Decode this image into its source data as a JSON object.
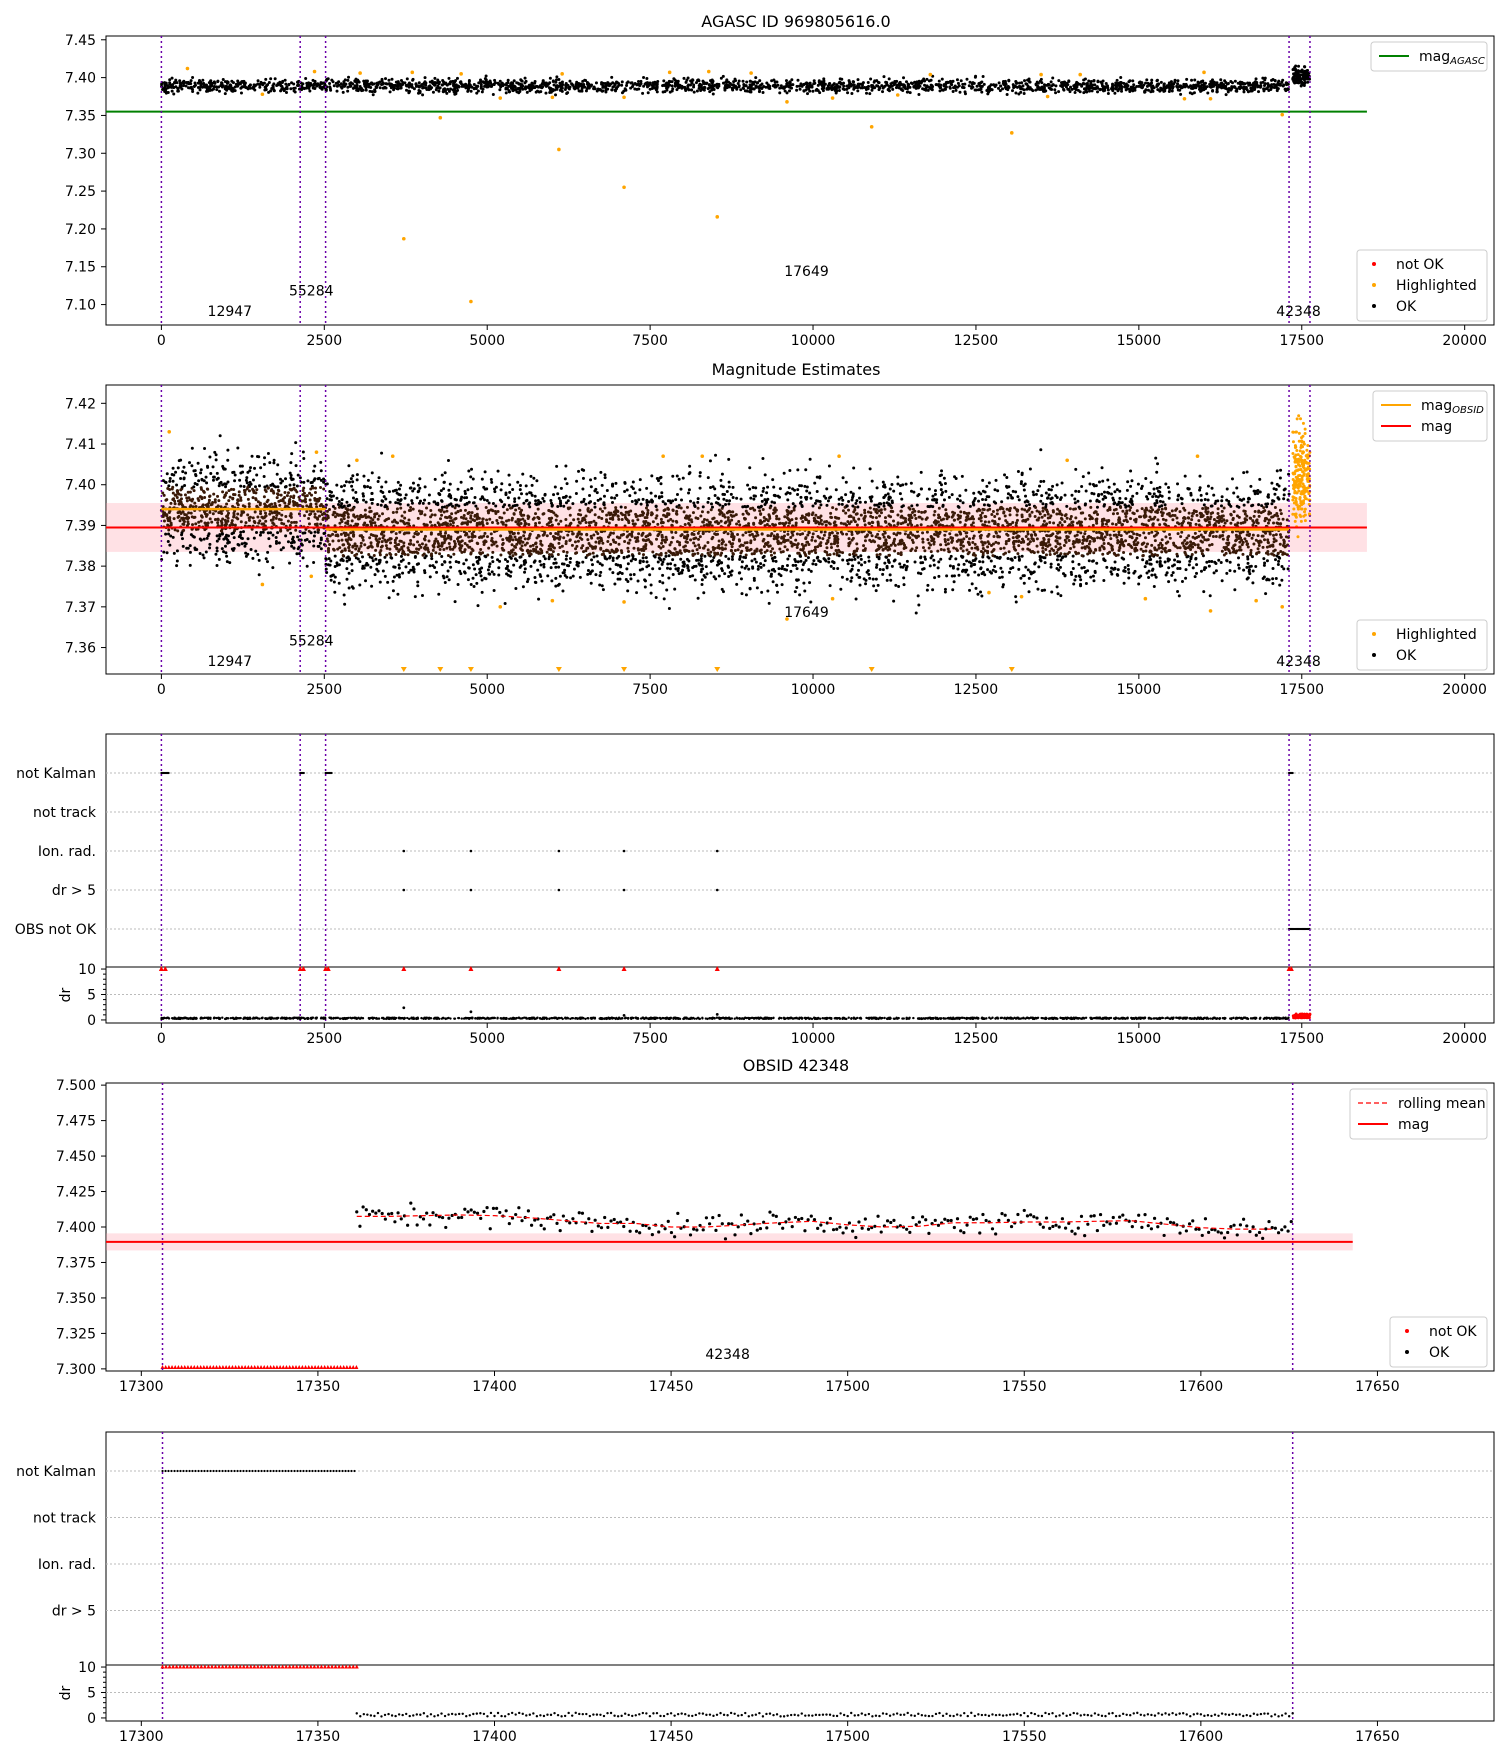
{
  "figure": {
    "titles": {
      "p1": "AGASC ID 969805616.0",
      "p2": "Magnitude Estimates",
      "p4": "OBSID 42348"
    }
  },
  "chart_data": [
    {
      "id": "p1",
      "type": "scatter",
      "title": "AGASC ID 969805616.0",
      "xlim": [
        -850,
        20450
      ],
      "ylim": [
        7.073,
        7.455
      ],
      "xticks": [
        0,
        2500,
        5000,
        7500,
        10000,
        12500,
        15000,
        17500,
        20000
      ],
      "yticks": [
        7.1,
        7.15,
        7.2,
        7.25,
        7.3,
        7.35,
        7.4,
        7.45
      ],
      "ytick_labels": [
        "7.10",
        "7.15",
        "7.20",
        "7.25",
        "7.30",
        "7.35",
        "7.40",
        "7.45"
      ],
      "vlines": [
        0,
        2130,
        2520,
        17305,
        17626
      ],
      "obsid_labels": [
        {
          "text": "12947",
          "x": 1050,
          "y": 7.085
        },
        {
          "text": "55284",
          "x": 2300,
          "y": 7.112
        },
        {
          "text": "17649",
          "x": 9900,
          "y": 7.138
        },
        {
          "text": "42348",
          "x": 17450,
          "y": 7.085
        }
      ],
      "mag_agasc": {
        "value": 7.355,
        "x_range": [
          -850,
          18500
        ]
      },
      "ok_band": {
        "center": 7.389,
        "spread": 0.009
      },
      "ok_band_obs42348": {
        "x_range": [
          17360,
          17626
        ],
        "center": 7.402,
        "spread": 0.012
      },
      "highlighted_points": [
        [
          3720,
          7.187
        ],
        [
          4280,
          7.347
        ],
        [
          4750,
          7.104
        ],
        [
          6100,
          7.305
        ],
        [
          7100,
          7.255
        ],
        [
          8530,
          7.216
        ],
        [
          10900,
          7.335
        ],
        [
          13050,
          7.327
        ],
        [
          17200,
          7.351
        ],
        [
          1550,
          7.378
        ],
        [
          5200,
          7.373
        ],
        [
          6000,
          7.374
        ],
        [
          7100,
          7.374
        ],
        [
          9600,
          7.368
        ],
        [
          10300,
          7.373
        ],
        [
          11300,
          7.377
        ],
        [
          13600,
          7.375
        ],
        [
          15700,
          7.372
        ],
        [
          16100,
          7.372
        ],
        [
          400,
          7.412
        ],
        [
          2350,
          7.408
        ],
        [
          3050,
          7.406
        ],
        [
          3850,
          7.407
        ],
        [
          4600,
          7.405
        ],
        [
          6150,
          7.405
        ],
        [
          7800,
          7.407
        ],
        [
          8400,
          7.408
        ],
        [
          9050,
          7.406
        ],
        [
          11800,
          7.404
        ],
        [
          13500,
          7.404
        ],
        [
          14100,
          7.404
        ],
        [
          16000,
          7.407
        ]
      ],
      "legend_lines": [
        {
          "name": "mag",
          "sub": "AGASC",
          "color": "#008000"
        }
      ],
      "legend_points": [
        {
          "name": "not OK",
          "color": "#ff0000"
        },
        {
          "name": "Highlighted",
          "color": "#ffa500"
        },
        {
          "name": "OK",
          "color": "#000000"
        }
      ]
    },
    {
      "id": "p2",
      "type": "scatter",
      "title": "Magnitude Estimates",
      "xlim": [
        -850,
        20450
      ],
      "ylim": [
        7.3535,
        7.4245
      ],
      "xticks": [
        0,
        2500,
        5000,
        7500,
        10000,
        12500,
        15000,
        17500,
        20000
      ],
      "yticks": [
        7.36,
        7.37,
        7.38,
        7.39,
        7.4,
        7.41,
        7.42
      ],
      "ytick_labels": [
        "7.36",
        "7.37",
        "7.38",
        "7.39",
        "7.40",
        "7.41",
        "7.42"
      ],
      "vlines": [
        0,
        2130,
        2520,
        17305,
        17626
      ],
      "obsid_labels": [
        {
          "text": "12947",
          "x": 1050,
          "y": 7.3555
        },
        {
          "text": "55284",
          "x": 2300,
          "y": 7.3605
        },
        {
          "text": "17649",
          "x": 9900,
          "y": 7.3675
        },
        {
          "text": "42348",
          "x": 17450,
          "y": 7.3555
        }
      ],
      "mag": {
        "value": 7.3895,
        "band": [
          7.3835,
          7.3955
        ],
        "x_range": [
          -850,
          18500
        ]
      },
      "mag_obsid_segments": [
        {
          "x": [
            0,
            2520
          ],
          "value": 7.394
        },
        {
          "x": [
            2520,
            17305
          ],
          "value": 7.389
        }
      ],
      "cloud_obs12947": {
        "x_range": [
          0,
          2520
        ],
        "center": 7.394,
        "spread": 0.011
      },
      "cloud_obs17649": {
        "x_range": [
          2520,
          17305
        ],
        "center": 7.3885,
        "spread": 0.012
      },
      "cloud_obs42348": {
        "x_range": [
          17360,
          17626
        ],
        "center": 7.402,
        "spread": 0.01
      },
      "highlighted_points": [
        [
          120,
          7.413
        ],
        [
          1550,
          7.3755
        ],
        [
          2300,
          7.3775
        ],
        [
          2380,
          7.408
        ],
        [
          3000,
          7.406
        ],
        [
          3550,
          7.407
        ],
        [
          5200,
          7.37
        ],
        [
          6000,
          7.3715
        ],
        [
          7100,
          7.3712
        ],
        [
          7700,
          7.407
        ],
        [
          8300,
          7.407
        ],
        [
          9600,
          7.367
        ],
        [
          10300,
          7.372
        ],
        [
          10400,
          7.407
        ],
        [
          12700,
          7.3735
        ],
        [
          13200,
          7.3725
        ],
        [
          13900,
          7.406
        ],
        [
          15100,
          7.372
        ],
        [
          15900,
          7.407
        ],
        [
          16100,
          7.369
        ],
        [
          16800,
          7.3715
        ],
        [
          17200,
          7.37
        ]
      ],
      "below_axis_markers": [
        3720,
        4280,
        4750,
        6100,
        7100,
        8530,
        10900,
        13050
      ],
      "legend_lines": [
        {
          "name": "mag",
          "sub": "OBSID",
          "color": "#ffa500"
        },
        {
          "name": "mag",
          "sub": "",
          "color": "#ff0000"
        }
      ],
      "legend_points": [
        {
          "name": "Highlighted",
          "color": "#ffa500"
        },
        {
          "name": "OK",
          "color": "#000000"
        }
      ]
    },
    {
      "id": "p3",
      "type": "scatter",
      "xlim": [
        -850,
        20450
      ],
      "xticks": [
        0,
        2500,
        5000,
        7500,
        10000,
        12500,
        15000,
        17500,
        20000
      ],
      "vlines": [
        0,
        2130,
        2520,
        17305,
        17626
      ],
      "flag_rows": [
        "not Kalman",
        "not track",
        "Ion. rad.",
        "dr > 5",
        "OBS not OK"
      ],
      "flags": {
        "not Kalman": [
          [
            0,
            120
          ],
          [
            2130,
            2200
          ],
          [
            2520,
            2620
          ],
          [
            17305,
            17370
          ]
        ],
        "not track": [],
        "Ion. rad.": [
          3720,
          4750,
          6100,
          7100,
          8530
        ],
        "dr > 5": [
          3720,
          4750,
          6100,
          7100,
          8530
        ],
        "OBS not OK": [
          [
            17305,
            17626
          ]
        ]
      },
      "dr": {
        "ylim": [
          -0.6,
          10.4
        ],
        "yticks": [
          0,
          5,
          10
        ],
        "ytick_labels": [
          "0",
          "5",
          "10"
        ],
        "ylabel": "dr",
        "baseline": 0.2,
        "red_at_10": [
          0,
          60,
          2130,
          2180,
          2520,
          2560,
          3720,
          4750,
          6100,
          7100,
          8530,
          17305,
          17340
        ],
        "spikes": [
          [
            3720,
            2.4
          ],
          [
            4750,
            1.6
          ],
          [
            7100,
            0.9
          ],
          [
            8530,
            1.1
          ]
        ],
        "red_tail": [
          17360,
          17626
        ]
      }
    },
    {
      "id": "p4",
      "type": "scatter",
      "title": "OBSID 42348",
      "xlim": [
        17290,
        17683
      ],
      "ylim": [
        7.2985,
        7.5015
      ],
      "xticks": [
        17300,
        17350,
        17400,
        17450,
        17500,
        17550,
        17600,
        17650
      ],
      "yticks": [
        7.3,
        7.325,
        7.35,
        7.375,
        7.4,
        7.425,
        7.45,
        7.475,
        7.5
      ],
      "ytick_labels": [
        "7.300",
        "7.325",
        "7.350",
        "7.375",
        "7.400",
        "7.425",
        "7.450",
        "7.475",
        "7.500"
      ],
      "vlines": [
        17306,
        17626
      ],
      "obsid_labels": [
        {
          "text": "42348",
          "x": 17466,
          "y": 7.307
        }
      ],
      "mag": {
        "value": 7.3895,
        "band": [
          7.3835,
          7.3955
        ],
        "x_range": [
          17290,
          17643
        ]
      },
      "not_ok": {
        "x_range": [
          17306,
          17361
        ],
        "value": 7.301
      },
      "ok_series_x_range": [
        17361,
        17626
      ],
      "rolling_mean": [
        [
          17361,
          7.4075
        ],
        [
          17370,
          7.4075
        ],
        [
          17380,
          7.408
        ],
        [
          17390,
          7.4085
        ],
        [
          17400,
          7.408
        ],
        [
          17410,
          7.4065
        ],
        [
          17420,
          7.4045
        ],
        [
          17430,
          7.4025
        ],
        [
          17440,
          7.4025
        ],
        [
          17450,
          7.4
        ],
        [
          17460,
          7.4
        ],
        [
          17470,
          7.4015
        ],
        [
          17480,
          7.403
        ],
        [
          17490,
          7.404
        ],
        [
          17500,
          7.4015
        ],
        [
          17510,
          7.4
        ],
        [
          17520,
          7.4005
        ],
        [
          17530,
          7.403
        ],
        [
          17540,
          7.403
        ],
        [
          17550,
          7.4035
        ],
        [
          17560,
          7.4035
        ],
        [
          17570,
          7.404
        ],
        [
          17580,
          7.4045
        ],
        [
          17590,
          7.402
        ],
        [
          17600,
          7.3995
        ],
        [
          17610,
          7.3985
        ],
        [
          17620,
          7.3985
        ]
      ],
      "legend_lines": [
        {
          "name": "rolling mean",
          "color": "#ff0000",
          "dashed": true
        },
        {
          "name": "mag",
          "color": "#ff0000",
          "dashed": false
        }
      ],
      "legend_points": [
        {
          "name": "not OK",
          "color": "#ff0000"
        },
        {
          "name": "OK",
          "color": "#000000"
        }
      ]
    },
    {
      "id": "p5",
      "type": "scatter",
      "xlim": [
        17290,
        17683
      ],
      "xticks": [
        17300,
        17350,
        17400,
        17450,
        17500,
        17550,
        17600,
        17650
      ],
      "vlines": [
        17306,
        17626
      ],
      "flag_rows": [
        "not Kalman",
        "not track",
        "Ion. rad.",
        "dr > 5"
      ],
      "flags": {
        "not Kalman": [
          [
            17306,
            17361
          ]
        ],
        "not track": [],
        "Ion. rad.": [],
        "dr > 5": []
      },
      "dr": {
        "ylim": [
          -0.6,
          10.4
        ],
        "yticks": [
          0,
          5,
          10
        ],
        "ytick_labels": [
          "0",
          "5",
          "10"
        ],
        "ylabel": "dr",
        "red_at_10": [
          17306,
          17361
        ],
        "ok_x_range": [
          17361,
          17626
        ],
        "ok_baseline": 0.3
      }
    }
  ]
}
